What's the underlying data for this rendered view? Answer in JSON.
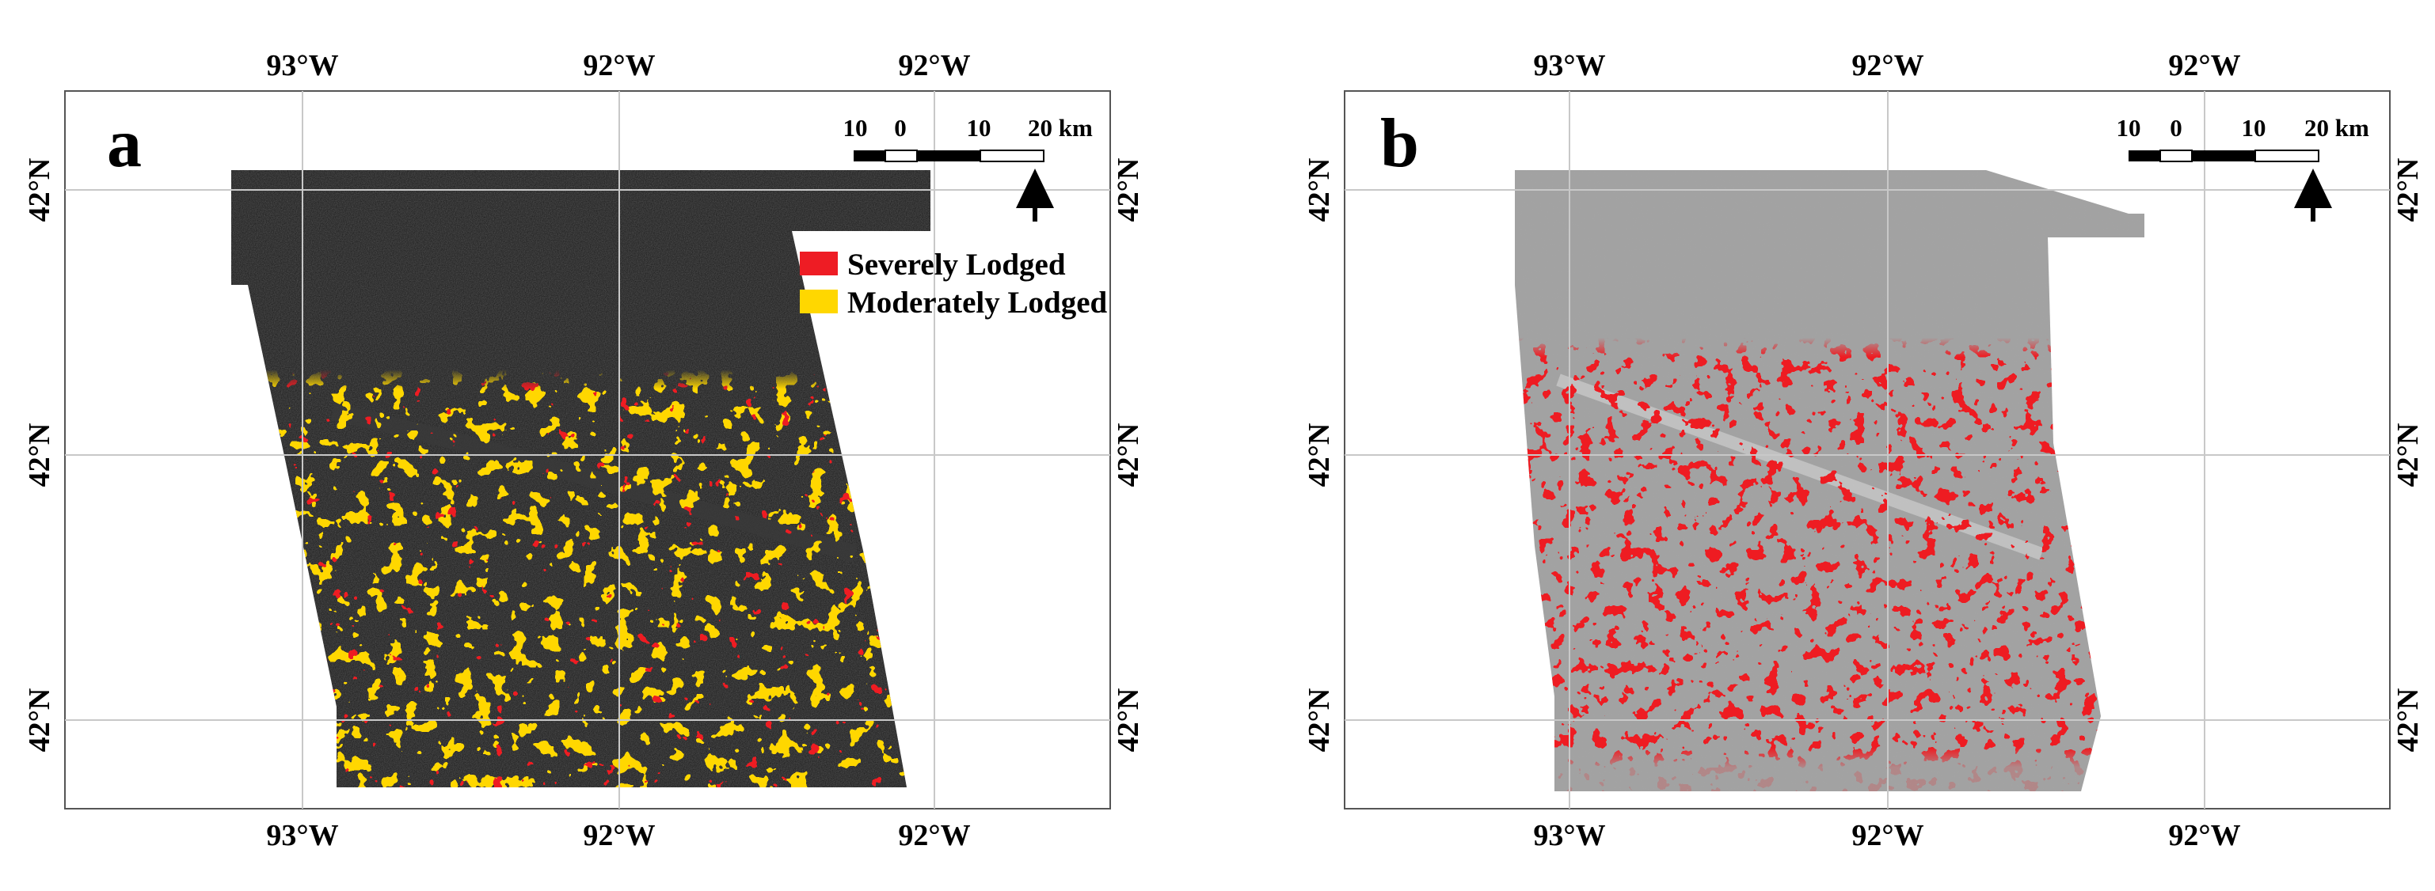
{
  "panels": [
    {
      "id": "a",
      "letter": "a",
      "top_ticks": [
        "93°W",
        "92°W",
        "92°W"
      ],
      "bottom_ticks": [
        "93°W",
        "92°W",
        "92°W"
      ],
      "left_ticks": [
        "42°N",
        "42°N",
        "42°N"
      ],
      "right_ticks": [
        "42°N",
        "42°N",
        "42°N"
      ],
      "scale_labels": [
        "10",
        "0",
        "10",
        "20 km"
      ],
      "legend": [
        {
          "label": "Severely Lodged",
          "color": "#ee1c24"
        },
        {
          "label": "Moderately Lodged",
          "color": "#ffd700"
        }
      ],
      "background": "#1c1c1c"
    },
    {
      "id": "b",
      "letter": "b",
      "top_ticks": [
        "93°W",
        "92°W",
        "92°W"
      ],
      "bottom_ticks": [
        "93°W",
        "92°W",
        "92°W"
      ],
      "left_ticks": [
        "42°N",
        "42°N",
        "42°N"
      ],
      "right_ticks": [
        "42°N",
        "42°N",
        "42°N"
      ],
      "scale_labels": [
        "10",
        "0",
        "10",
        "20 km"
      ],
      "legend": [],
      "background": "#a3a3a3"
    }
  ],
  "colors": {
    "severe": "#ee1c24",
    "moderate": "#ffd700",
    "grid": "#c8c8c8",
    "frame": "#555555"
  },
  "icons": {
    "north_arrow": "north-arrow-icon"
  }
}
